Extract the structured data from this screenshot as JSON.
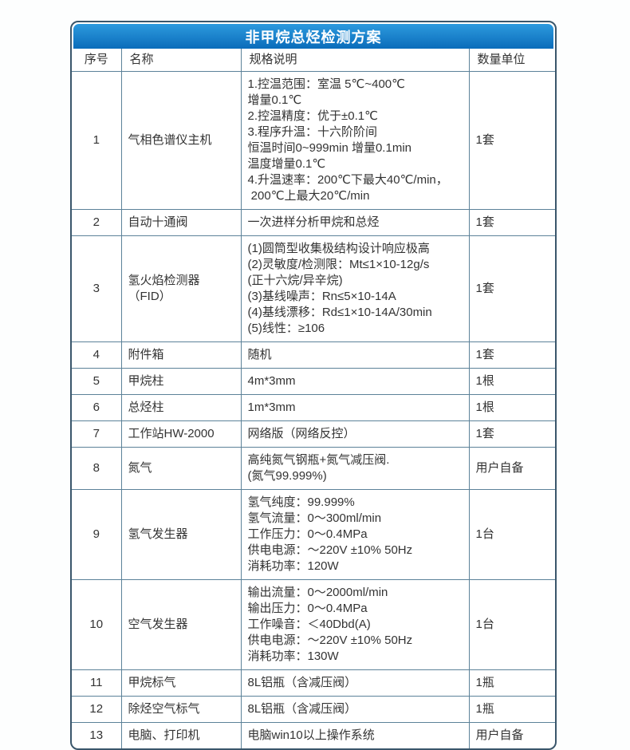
{
  "page": {
    "title": "非甲烷总烃检测方案"
  },
  "colors": {
    "title_gradient_top": "#2d9ade",
    "title_gradient_bottom": "#0a6cba",
    "card_border": "#3a566b",
    "grid_line": "#5c8299",
    "text": "#333333",
    "title_text": "#ffffff",
    "background": "#fdfefe"
  },
  "table": {
    "columns": [
      "序号",
      "名称",
      "规格说明",
      "数量单位"
    ],
    "rows": [
      {
        "no": "1",
        "name": "气相色谱仪主机",
        "spec": [
          "1.控温范围：室温 5℃~400℃",
          "增量0.1℃",
          "2.控温精度：优于±0.1℃",
          "3.程序升温：十六阶阶间",
          "恒温时间0~999min 增量0.1min",
          "温度增量0.1℃",
          "4.升温速率：200℃下最大40℃/min，",
          " 200℃上最大20℃/min"
        ],
        "qty": "1套"
      },
      {
        "no": "2",
        "name": "自动十通阀",
        "spec": [
          "一次进样分析甲烷和总烃"
        ],
        "qty": "1套"
      },
      {
        "no": "3",
        "name": "氢火焰检测器（FID）",
        "spec": [
          "(1)圆筒型收集极结构设计响应极高",
          "(2)灵敏度/检测限：Mt≤1×10-12g/s",
          "(正十六烷/异辛烷)",
          "(3)基线噪声：Rn≤5×10-14A",
          "(4)基线漂移：Rd≤1×10-14A/30min",
          "(5)线性：≥106"
        ],
        "qty": "1套"
      },
      {
        "no": "4",
        "name": "附件箱",
        "spec": [
          "随机"
        ],
        "qty": "1套"
      },
      {
        "no": "5",
        "name": "甲烷柱",
        "spec": [
          "4m*3mm"
        ],
        "qty": "1根"
      },
      {
        "no": "6",
        "name": "总烃柱",
        "spec": [
          "1m*3mm"
        ],
        "qty": "1根"
      },
      {
        "no": "7",
        "name": "工作站HW-2000",
        "spec": [
          "网络版（网络反控）"
        ],
        "qty": "1套"
      },
      {
        "no": "8",
        "name": "氮气",
        "spec": [
          "高纯氮气钢瓶+氮气减压阀.",
          "(氮气99.999%)"
        ],
        "qty": "用户自备"
      },
      {
        "no": "9",
        "name": "氢气发生器",
        "spec": [
          "氢气纯度：99.999%",
          "氢气流量：0～300ml/min",
          "工作压力：0～0.4MPa",
          "供电电源：～220V ±10% 50Hz",
          "消耗功率：120W"
        ],
        "qty": "1台"
      },
      {
        "no": "10",
        "name": "空气发生器",
        "spec": [
          "输出流量：0～2000ml/min",
          "输出压力：0～0.4MPa",
          "工作噪音：＜40Dbd(A)",
          "供电电源：～220V ±10% 50Hz",
          "消耗功率：130W"
        ],
        "qty": "1台"
      },
      {
        "no": "11",
        "name": "甲烷标气",
        "spec": [
          "8L铝瓶（含减压阀）"
        ],
        "qty": "1瓶"
      },
      {
        "no": "12",
        "name": "除烃空气标气",
        "spec": [
          "8L铝瓶（含减压阀）"
        ],
        "qty": "1瓶"
      },
      {
        "no": "13",
        "name": "电脑、打印机",
        "spec": [
          "电脑win10以上操作系统"
        ],
        "qty": "用户自备"
      }
    ]
  }
}
